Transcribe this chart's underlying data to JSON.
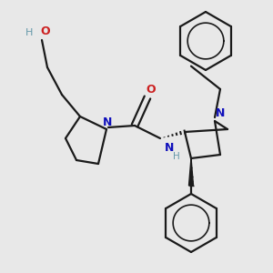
{
  "bg_color": "#e8e8e8",
  "bond_color": "#1a1a1a",
  "N_color": "#1010bb",
  "O_color": "#cc2020",
  "H_color": "#6699aa",
  "line_width": 1.6,
  "fig_size": [
    3.0,
    3.0
  ],
  "dpi": 100,
  "xlim": [
    0,
    300
  ],
  "ylim": [
    0,
    300
  ]
}
